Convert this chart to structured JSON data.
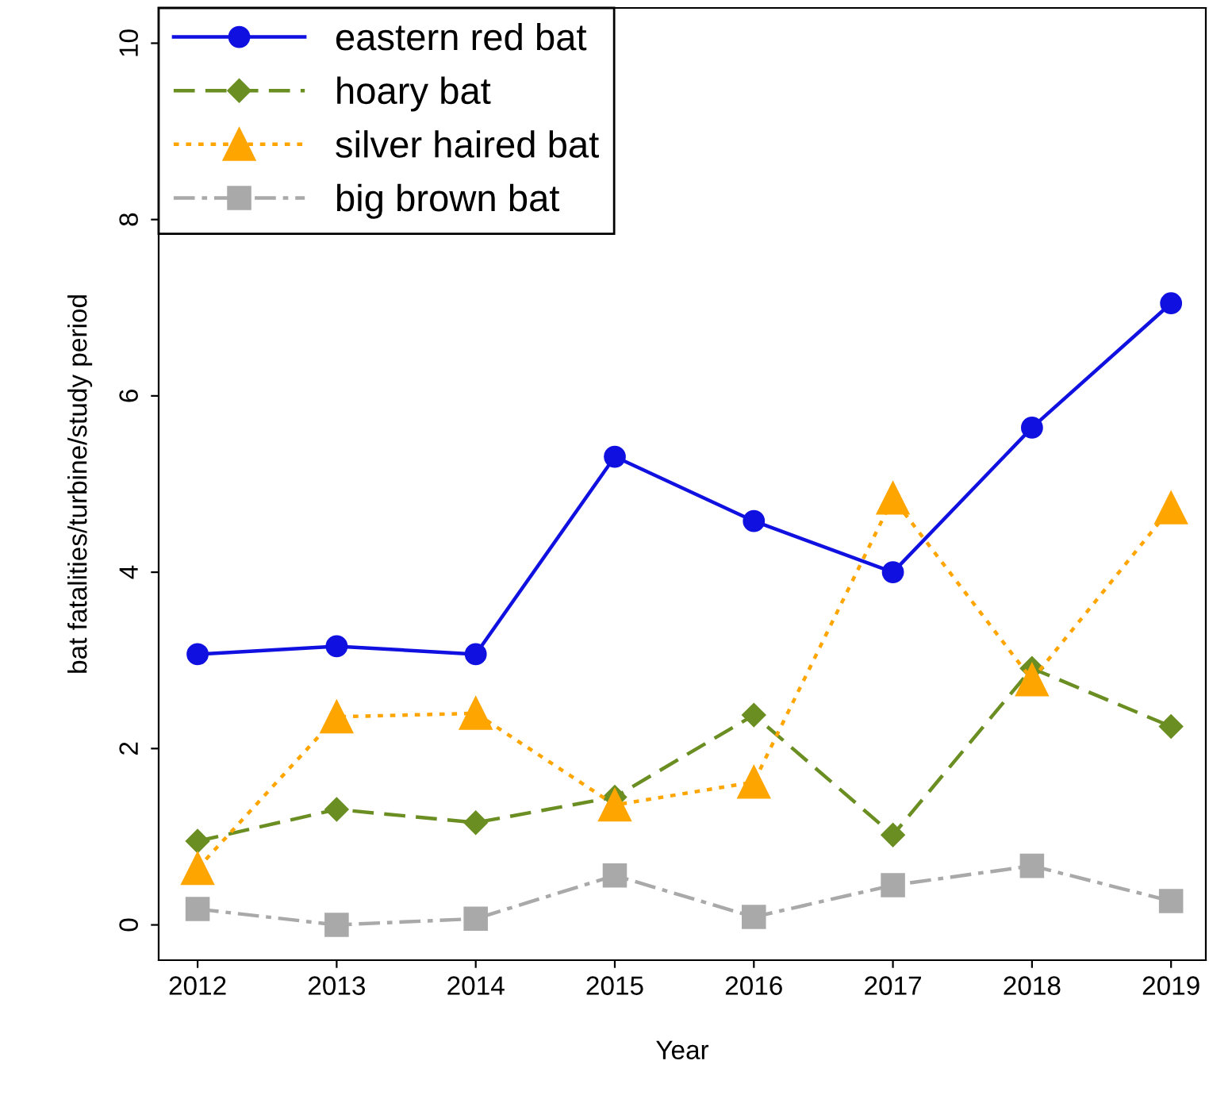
{
  "chart_data": {
    "type": "line",
    "xlabel": "Year",
    "ylabel": "bat fatalities/turbine/study period",
    "x": [
      2012,
      2013,
      2014,
      2015,
      2016,
      2017,
      2018,
      2019
    ],
    "xlim": [
      2011.72,
      2019.25
    ],
    "xticks": [
      2012,
      2013,
      2014,
      2015,
      2016,
      2017,
      2018,
      2019
    ],
    "ylim": [
      -0.4,
      10.4
    ],
    "yticks": [
      0,
      2,
      4,
      6,
      8,
      10
    ],
    "grid": false,
    "legend": "top left",
    "series": [
      {
        "name": "eastern red bat",
        "color": "#1010e0",
        "marker": "circle",
        "line_style": "solid",
        "values": [
          3.07,
          3.16,
          3.07,
          5.31,
          4.58,
          4.0,
          5.64,
          7.05
        ]
      },
      {
        "name": "hoary bat",
        "color": "#6b8e23",
        "marker": "diamond",
        "line_style": "dashed",
        "values": [
          0.95,
          1.31,
          1.16,
          1.45,
          2.38,
          1.02,
          2.91,
          2.25
        ]
      },
      {
        "name": "silver haired bat",
        "color": "#ffa500",
        "marker": "triangle",
        "line_style": "dotted",
        "values": [
          0.64,
          2.36,
          2.4,
          1.36,
          1.62,
          4.84,
          2.78,
          4.73
        ]
      },
      {
        "name": "big brown bat",
        "color": "#a9a9a9",
        "marker": "square",
        "line_style": "dashdot",
        "values": [
          0.18,
          0.0,
          0.07,
          0.56,
          0.09,
          0.45,
          0.67,
          0.27
        ]
      }
    ]
  }
}
